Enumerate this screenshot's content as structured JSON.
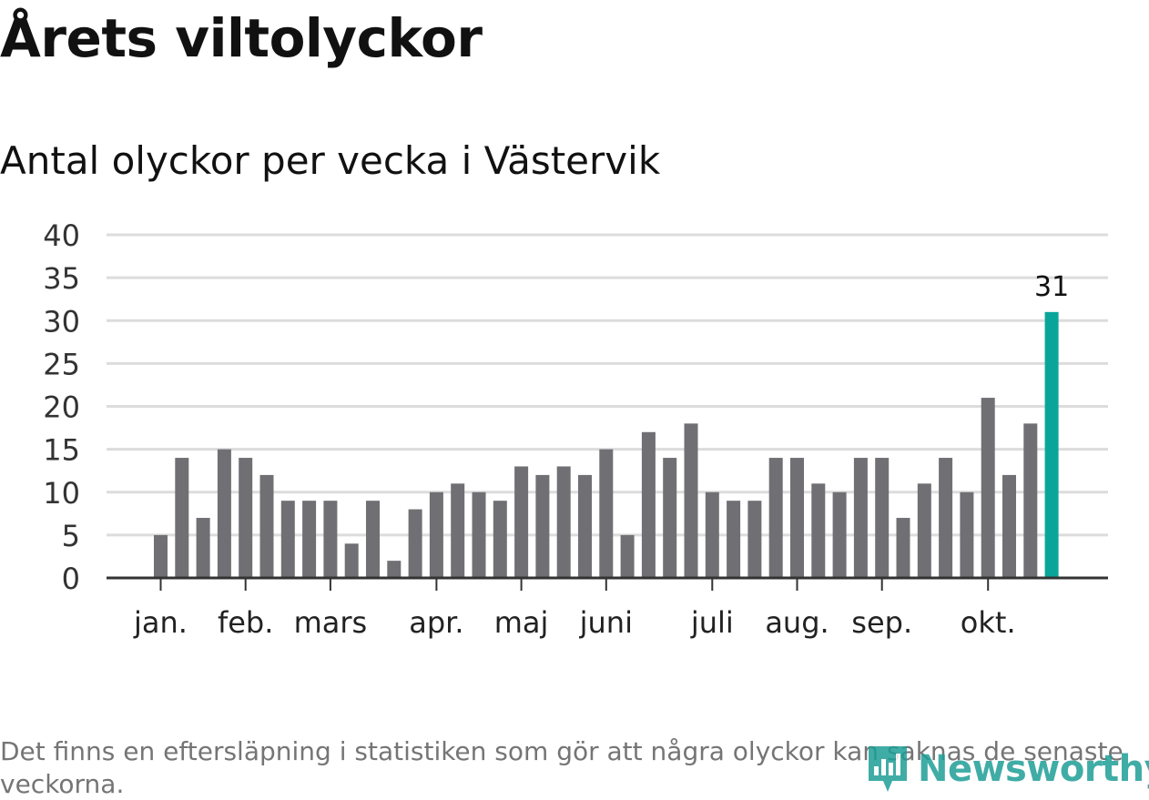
{
  "title": "Årets viltolyckor",
  "subtitle": "Antal olyckor per vecka i Västervik",
  "footnote": "Det finns en eftersläpning i statistiken som gör att några olyckor kan saknas de senaste veckorna.",
  "logo_text": "Newsworthy",
  "colors": {
    "bar": "#707074",
    "highlight": "#0aa59a",
    "grid": "#dcdcdc",
    "axis": "#333333",
    "logo": "#1f9e97"
  },
  "chart_data": {
    "type": "bar",
    "title": "Antal olyckor per vecka i Västervik",
    "xlabel": "",
    "ylabel": "",
    "ylim": [
      0,
      40
    ],
    "yticks": [
      0,
      5,
      10,
      15,
      20,
      25,
      30,
      35,
      40
    ],
    "values": [
      5,
      14,
      7,
      15,
      14,
      12,
      9,
      9,
      9,
      4,
      9,
      2,
      8,
      10,
      11,
      10,
      9,
      13,
      12,
      13,
      12,
      15,
      5,
      17,
      14,
      18,
      10,
      9,
      9,
      14,
      14,
      11,
      10,
      14,
      14,
      7,
      11,
      14,
      10,
      21,
      12,
      18,
      31
    ],
    "highlight_index": 42,
    "highlight_label": "31",
    "month_labels": [
      {
        "label": "jan.",
        "week_index": 0
      },
      {
        "label": "feb.",
        "week_index": 4
      },
      {
        "label": "mars",
        "week_index": 8
      },
      {
        "label": "apr.",
        "week_index": 13
      },
      {
        "label": "maj",
        "week_index": 17
      },
      {
        "label": "juni",
        "week_index": 21
      },
      {
        "label": "juli",
        "week_index": 26
      },
      {
        "label": "aug.",
        "week_index": 30
      },
      {
        "label": "sep.",
        "week_index": 34
      },
      {
        "label": "okt.",
        "week_index": 39
      }
    ]
  }
}
